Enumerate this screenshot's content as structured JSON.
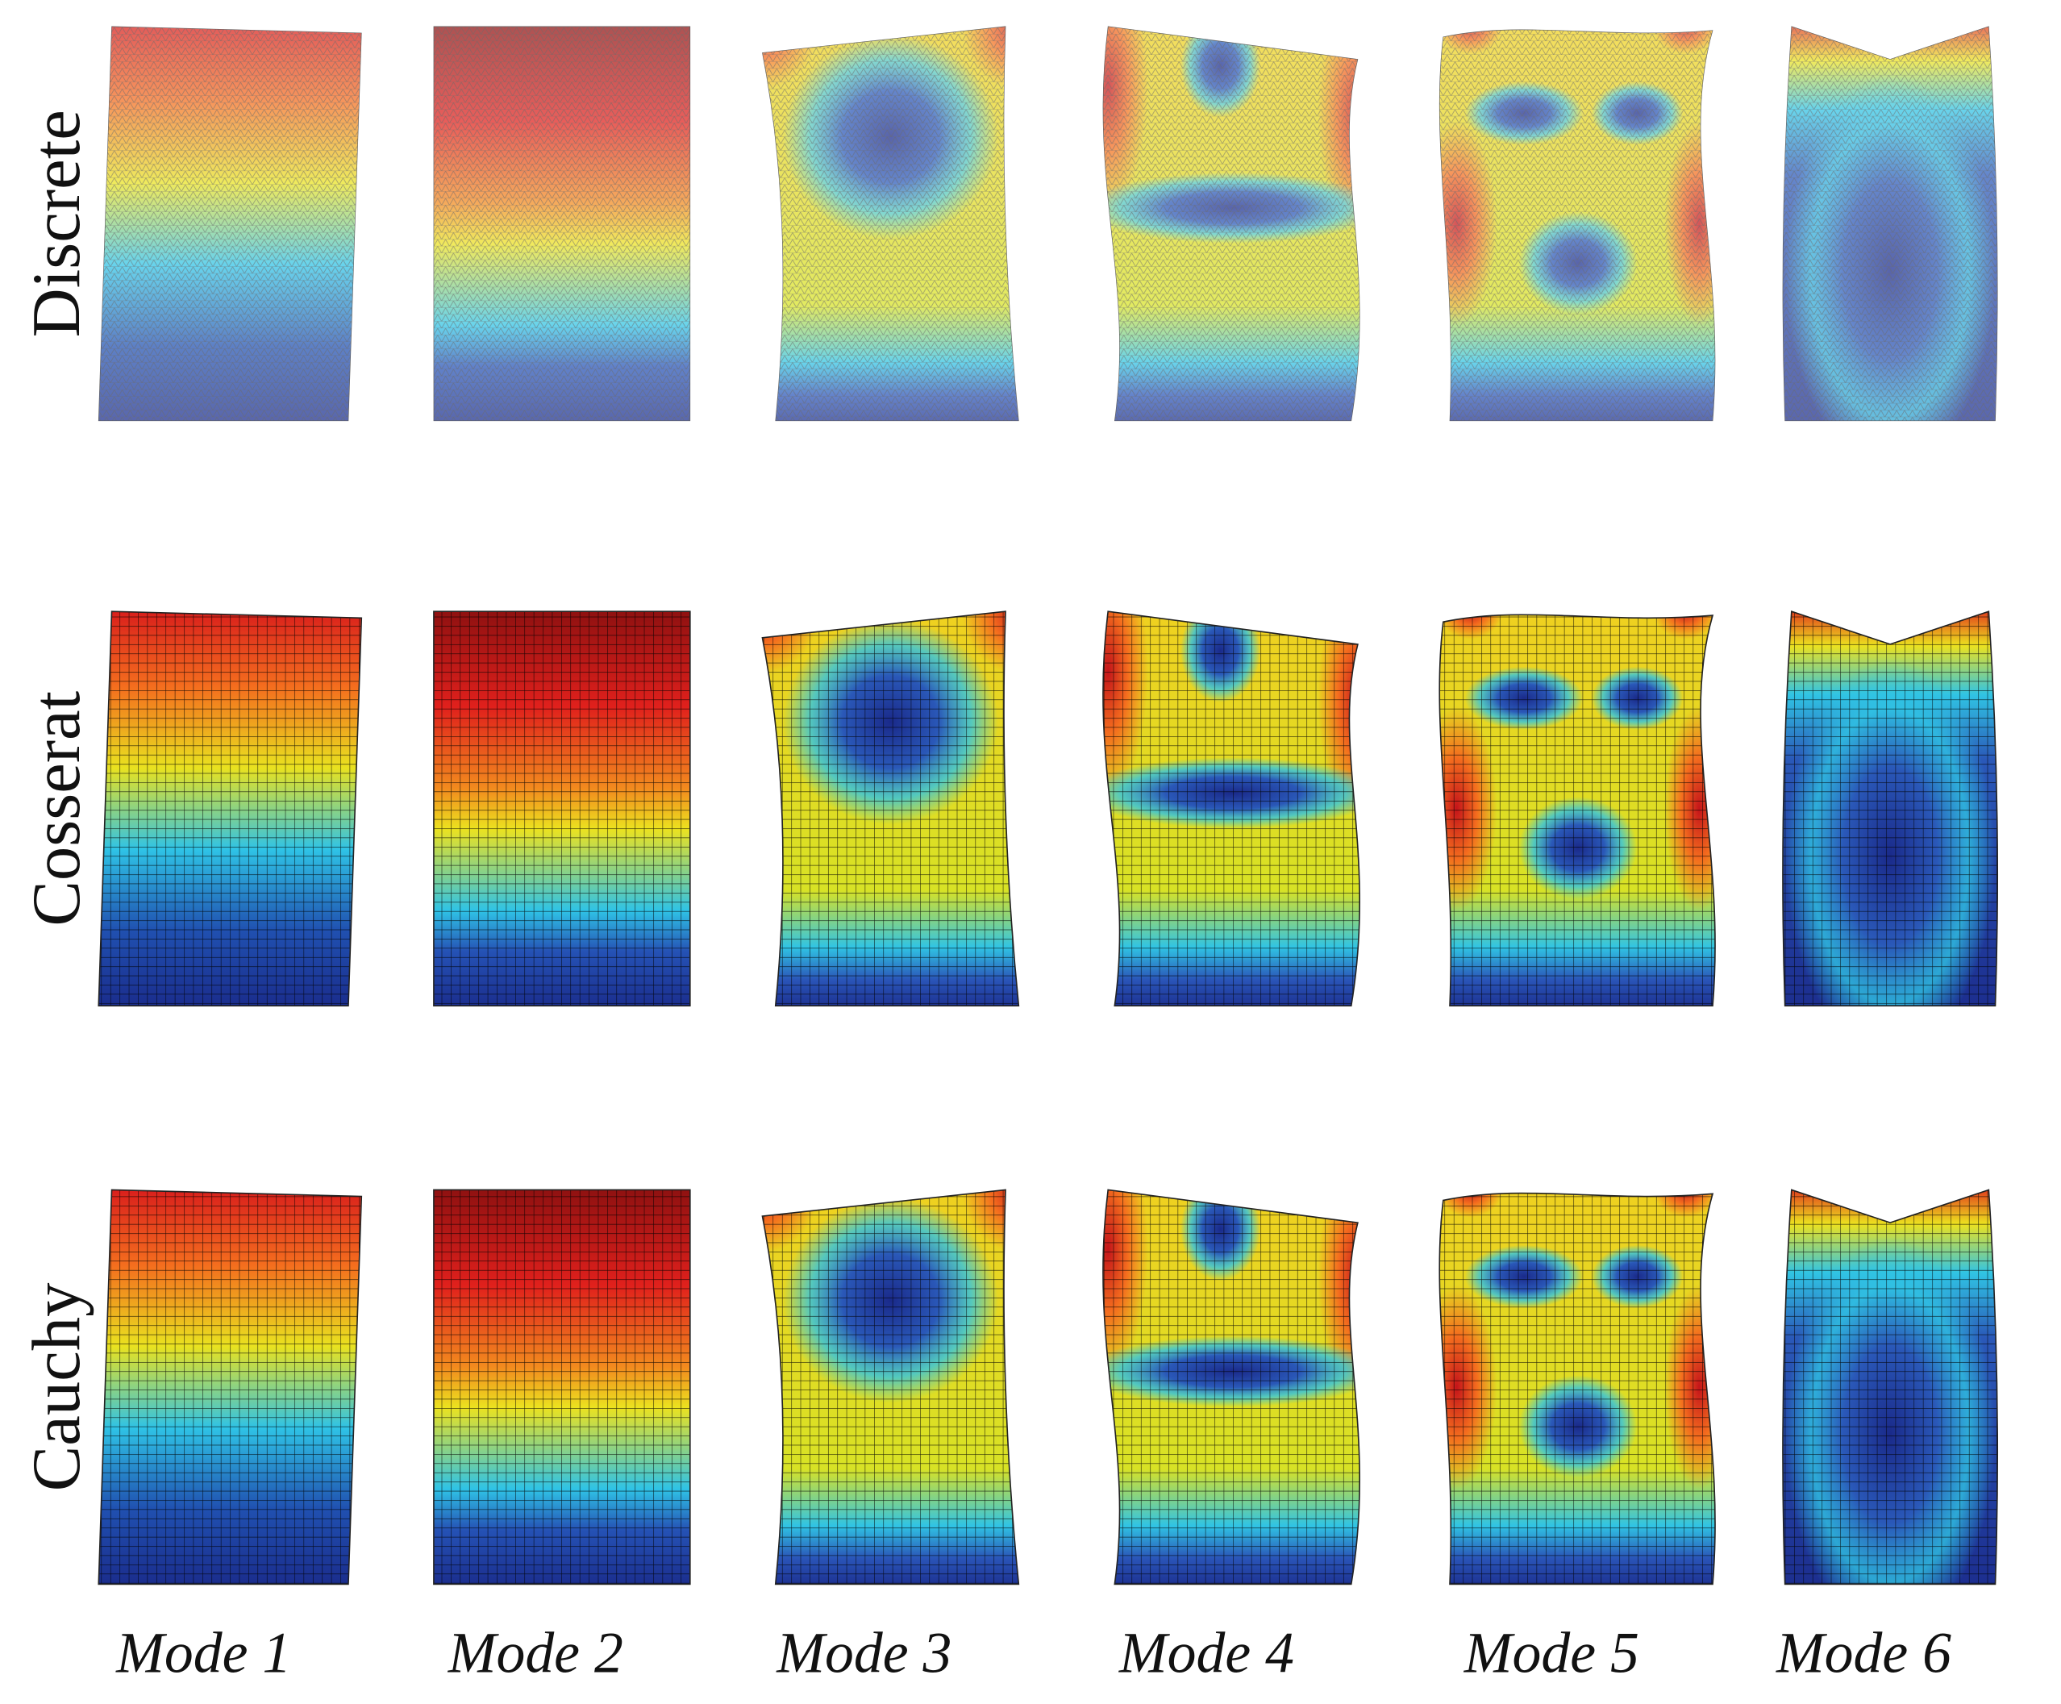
{
  "row_labels": [
    "Discrete",
    "Cosserat",
    "Cauchy"
  ],
  "column_labels": [
    "Mode 1",
    "Mode 2",
    "Mode 3",
    "Mode 4",
    "Mode 5",
    "Mode 6"
  ]
}
